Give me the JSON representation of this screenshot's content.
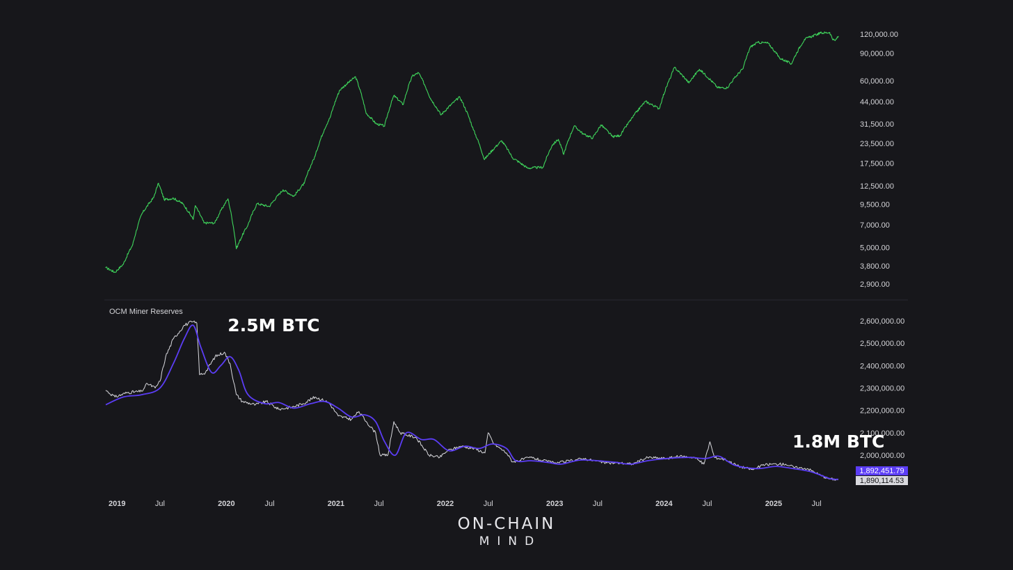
{
  "chart_data": [
    {
      "type": "line",
      "scale": "log",
      "y_ticks": [
        "120,000.00",
        "90,000.00",
        "60,000.00",
        "44,000.00",
        "31,500.00",
        "23,500.00",
        "17,500.00",
        "12,500.00",
        "9,500.00",
        "7,000.00",
        "5,000.00",
        "3,800.00",
        "2,900.00"
      ],
      "y_tick_values": [
        120000,
        90000,
        60000,
        44000,
        31500,
        23500,
        17500,
        12500,
        9500,
        7000,
        5000,
        3800,
        2900
      ],
      "ylim": [
        2900,
        120000
      ],
      "series": [
        {
          "color": "#3fd65c",
          "points": [
            [
              "2019-01-01",
              3700
            ],
            [
              "2019-02-01",
              3450
            ],
            [
              "2019-03-01",
              3900
            ],
            [
              "2019-04-01",
              5200
            ],
            [
              "2019-05-01",
              8200
            ],
            [
              "2019-06-10",
              10500
            ],
            [
              "2019-06-26",
              13000
            ],
            [
              "2019-07-15",
              10200
            ],
            [
              "2019-08-15",
              10400
            ],
            [
              "2019-09-15",
              9600
            ],
            [
              "2019-10-20",
              7600
            ],
            [
              "2019-10-27",
              9300
            ],
            [
              "2019-11-25",
              7200
            ],
            [
              "2019-12-31",
              7200
            ],
            [
              "2020-02-13",
              10300
            ],
            [
              "2020-03-12",
              4900
            ],
            [
              "2020-04-20",
              7000
            ],
            [
              "2020-05-20",
              9600
            ],
            [
              "2020-06-30",
              9200
            ],
            [
              "2020-08-15",
              11800
            ],
            [
              "2020-09-20",
              10700
            ],
            [
              "2020-10-25",
              13000
            ],
            [
              "2020-11-30",
              19500
            ],
            [
              "2020-12-31",
              29000
            ],
            [
              "2021-01-20",
              35000
            ],
            [
              "2021-02-20",
              52000
            ],
            [
              "2021-03-15",
              57000
            ],
            [
              "2021-04-14",
              63500
            ],
            [
              "2021-05-19",
              37000
            ],
            [
              "2021-06-22",
              31500
            ],
            [
              "2021-07-20",
              30500
            ],
            [
              "2021-08-20",
              48000
            ],
            [
              "2021-09-20",
              42000
            ],
            [
              "2021-10-20",
              64000
            ],
            [
              "2021-11-10",
              67500
            ],
            [
              "2021-12-20",
              46000
            ],
            [
              "2022-01-24",
              36000
            ],
            [
              "2022-03-28",
              47000
            ],
            [
              "2022-05-12",
              29000
            ],
            [
              "2022-06-18",
              18500
            ],
            [
              "2022-08-15",
              24500
            ],
            [
              "2022-09-20",
              19000
            ],
            [
              "2022-11-09",
              16300
            ],
            [
              "2022-12-31",
              16500
            ],
            [
              "2023-01-31",
              23000
            ],
            [
              "2023-02-20",
              25000
            ],
            [
              "2023-03-10",
              20000
            ],
            [
              "2023-04-14",
              30500
            ],
            [
              "2023-05-15",
              27000
            ],
            [
              "2023-06-15",
              25500
            ],
            [
              "2023-07-13",
              31000
            ],
            [
              "2023-08-20",
              26000
            ],
            [
              "2023-09-15",
              26500
            ],
            [
              "2023-10-25",
              34500
            ],
            [
              "2023-12-08",
              44000
            ],
            [
              "2024-01-23",
              39500
            ],
            [
              "2024-02-28",
              62000
            ],
            [
              "2024-03-14",
              73000
            ],
            [
              "2024-05-01",
              58000
            ],
            [
              "2024-06-05",
              71000
            ],
            [
              "2024-08-05",
              54000
            ],
            [
              "2024-09-06",
              54000
            ],
            [
              "2024-10-29",
              72000
            ],
            [
              "2024-11-22",
              99000
            ],
            [
              "2024-12-17",
              106000
            ],
            [
              "2025-01-20",
              105000
            ],
            [
              "2025-02-28",
              84000
            ],
            [
              "2025-04-08",
              77000
            ],
            [
              "2025-05-22",
              111000
            ],
            [
              "2025-07-14",
              122000
            ],
            [
              "2025-08-14",
              123000
            ],
            [
              "2025-08-25",
              110000
            ],
            [
              "2025-09-01",
              109000
            ],
            [
              "2025-09-12",
              116000
            ]
          ]
        }
      ]
    },
    {
      "type": "line",
      "title": "OCM Miner Reserves",
      "y_ticks": [
        "2,600,000.00",
        "2,500,000.00",
        "2,400,000.00",
        "2,300,000.00",
        "2,200,000.00",
        "2,100,000.00",
        "2,000,000.00"
      ],
      "y_tick_values": [
        2600000,
        2500000,
        2400000,
        2300000,
        2200000,
        2100000,
        2000000
      ],
      "ylim": [
        1890000,
        2600000
      ],
      "series": [
        {
          "color": "#d9d9de",
          "points": [
            [
              "2019-01-01",
              2290000
            ],
            [
              "2019-02-01",
              2260000
            ],
            [
              "2019-03-15",
              2280000
            ],
            [
              "2019-05-01",
              2285000
            ],
            [
              "2019-05-20",
              2320000
            ],
            [
              "2019-06-15",
              2300000
            ],
            [
              "2019-07-01",
              2330000
            ],
            [
              "2019-07-20",
              2440000
            ],
            [
              "2019-08-15",
              2520000
            ],
            [
              "2019-09-20",
              2580000
            ],
            [
              "2019-10-15",
              2595000
            ],
            [
              "2019-11-01",
              2590000
            ],
            [
              "2019-11-10",
              2360000
            ],
            [
              "2019-11-30",
              2370000
            ],
            [
              "2020-01-01",
              2440000
            ],
            [
              "2020-02-01",
              2460000
            ],
            [
              "2020-02-20",
              2410000
            ],
            [
              "2020-03-12",
              2270000
            ],
            [
              "2020-04-01",
              2240000
            ],
            [
              "2020-05-15",
              2225000
            ],
            [
              "2020-06-20",
              2240000
            ],
            [
              "2020-07-31",
              2205000
            ],
            [
              "2020-09-15",
              2215000
            ],
            [
              "2020-10-20",
              2230000
            ],
            [
              "2020-11-30",
              2260000
            ],
            [
              "2021-01-15",
              2235000
            ],
            [
              "2021-02-15",
              2175000
            ],
            [
              "2021-03-31",
              2160000
            ],
            [
              "2021-04-25",
              2195000
            ],
            [
              "2021-05-20",
              2150000
            ],
            [
              "2021-06-20",
              2100000
            ],
            [
              "2021-07-05",
              2000000
            ],
            [
              "2021-07-31",
              2000000
            ],
            [
              "2021-08-20",
              2150000
            ],
            [
              "2021-09-10",
              2100000
            ],
            [
              "2021-10-01",
              2090000
            ],
            [
              "2021-11-01",
              2080000
            ],
            [
              "2021-12-15",
              2000000
            ],
            [
              "2022-01-20",
              1990000
            ],
            [
              "2022-02-15",
              2020000
            ],
            [
              "2022-04-01",
              2040000
            ],
            [
              "2022-05-15",
              2030000
            ],
            [
              "2022-06-20",
              2010000
            ],
            [
              "2022-07-01",
              2100000
            ],
            [
              "2022-07-20",
              2050000
            ],
            [
              "2022-08-31",
              2010000
            ],
            [
              "2022-09-20",
              1970000
            ],
            [
              "2022-11-20",
              1990000
            ],
            [
              "2022-12-31",
              1975000
            ],
            [
              "2023-02-15",
              1965000
            ],
            [
              "2023-03-31",
              1975000
            ],
            [
              "2023-05-15",
              1985000
            ],
            [
              "2023-06-20",
              1975000
            ],
            [
              "2023-08-01",
              1965000
            ],
            [
              "2023-09-15",
              1965000
            ],
            [
              "2023-10-25",
              1960000
            ],
            [
              "2023-12-15",
              1990000
            ],
            [
              "2024-02-15",
              1985000
            ],
            [
              "2024-04-01",
              1995000
            ],
            [
              "2024-05-20",
              1990000
            ],
            [
              "2024-06-20",
              1960000
            ],
            [
              "2024-07-10",
              2060000
            ],
            [
              "2024-07-25",
              1990000
            ],
            [
              "2024-09-01",
              1980000
            ],
            [
              "2024-10-15",
              1950000
            ],
            [
              "2024-12-01",
              1935000
            ],
            [
              "2025-01-01",
              1955000
            ],
            [
              "2025-02-01",
              1960000
            ],
            [
              "2025-03-20",
              1960000
            ],
            [
              "2025-04-20",
              1945000
            ],
            [
              "2025-06-01",
              1940000
            ],
            [
              "2025-07-15",
              1910000
            ],
            [
              "2025-08-10",
              1895000
            ],
            [
              "2025-09-12",
              1890114.53
            ]
          ]
        },
        {
          "color": "#5b3df5",
          "points": [
            [
              "2019-01-01",
              2225000
            ],
            [
              "2019-03-01",
              2260000
            ],
            [
              "2019-05-01",
              2270000
            ],
            [
              "2019-07-01",
              2300000
            ],
            [
              "2019-08-15",
              2410000
            ],
            [
              "2019-09-20",
              2520000
            ],
            [
              "2019-10-20",
              2580000
            ],
            [
              "2019-11-15",
              2480000
            ],
            [
              "2019-12-20",
              2370000
            ],
            [
              "2020-01-20",
              2400000
            ],
            [
              "2020-02-20",
              2440000
            ],
            [
              "2020-03-20",
              2380000
            ],
            [
              "2020-04-20",
              2270000
            ],
            [
              "2020-06-15",
              2230000
            ],
            [
              "2020-08-01",
              2235000
            ],
            [
              "2020-09-20",
              2210000
            ],
            [
              "2020-11-15",
              2230000
            ],
            [
              "2021-01-01",
              2240000
            ],
            [
              "2021-02-15",
              2210000
            ],
            [
              "2021-04-01",
              2170000
            ],
            [
              "2021-05-15",
              2180000
            ],
            [
              "2021-06-20",
              2150000
            ],
            [
              "2021-07-20",
              2060000
            ],
            [
              "2021-08-25",
              2000000
            ],
            [
              "2021-10-01",
              2100000
            ],
            [
              "2021-11-20",
              2070000
            ],
            [
              "2022-01-01",
              2070000
            ],
            [
              "2022-02-20",
              2020000
            ],
            [
              "2022-04-15",
              2040000
            ],
            [
              "2022-06-01",
              2030000
            ],
            [
              "2022-07-15",
              2050000
            ],
            [
              "2022-08-31",
              2030000
            ],
            [
              "2022-10-01",
              1975000
            ],
            [
              "2022-11-20",
              1975000
            ],
            [
              "2023-01-15",
              1968000
            ],
            [
              "2023-03-01",
              1960000
            ],
            [
              "2023-05-01",
              1978000
            ],
            [
              "2023-07-01",
              1975000
            ],
            [
              "2023-08-31",
              1968000
            ],
            [
              "2023-10-20",
              1960000
            ],
            [
              "2023-12-15",
              1975000
            ],
            [
              "2024-02-15",
              1985000
            ],
            [
              "2024-05-01",
              1990000
            ],
            [
              "2024-06-25",
              1985000
            ],
            [
              "2024-08-10",
              1995000
            ],
            [
              "2024-10-01",
              1955000
            ],
            [
              "2024-12-15",
              1940000
            ],
            [
              "2025-02-15",
              1950000
            ],
            [
              "2025-04-15",
              1940000
            ],
            [
              "2025-06-15",
              1925000
            ],
            [
              "2025-08-15",
              1895000
            ],
            [
              "2025-09-12",
              1892451.79
            ]
          ]
        }
      ],
      "last_values": [
        {
          "value": "1,892,451.79",
          "color": "#5b3df5",
          "text_color": "#ffffff"
        },
        {
          "value": "1,890,114.53",
          "color": "#d9d9de",
          "text_color": "#111114"
        }
      ],
      "annotations": [
        {
          "text": "2.5M BTC",
          "at": "2020-01-20"
        },
        {
          "text": "1.8M BTC",
          "at": "2025-02-15"
        }
      ]
    }
  ],
  "time_axis": {
    "ticks": [
      {
        "label": "2019",
        "date": "2019-01-01",
        "bold": true
      },
      {
        "label": "Jul",
        "date": "2019-07-01",
        "bold": false
      },
      {
        "label": "2020",
        "date": "2020-01-01",
        "bold": true
      },
      {
        "label": "Jul",
        "date": "2020-07-01",
        "bold": false
      },
      {
        "label": "2021",
        "date": "2021-01-01",
        "bold": true
      },
      {
        "label": "Jul",
        "date": "2021-07-01",
        "bold": false
      },
      {
        "label": "2022",
        "date": "2022-01-01",
        "bold": true
      },
      {
        "label": "Jul",
        "date": "2022-07-01",
        "bold": false
      },
      {
        "label": "2023",
        "date": "2023-01-01",
        "bold": true
      },
      {
        "label": "Jul",
        "date": "2023-07-01",
        "bold": false
      },
      {
        "label": "2024",
        "date": "2024-01-01",
        "bold": true
      },
      {
        "label": "Jul",
        "date": "2024-07-01",
        "bold": false
      },
      {
        "label": "2025",
        "date": "2025-01-01",
        "bold": true
      },
      {
        "label": "Jul",
        "date": "2025-07-01",
        "bold": false
      }
    ]
  },
  "logo": {
    "line1": "ON-CHAIN",
    "line2": "MIND"
  }
}
